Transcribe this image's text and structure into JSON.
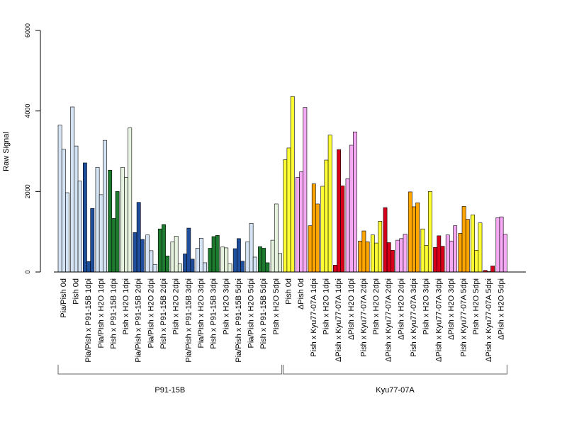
{
  "chart_data": {
    "type": "bar",
    "ylabel": "Raw Signal",
    "ylim": [
      0,
      6000
    ],
    "yticks": [
      "0",
      "2000",
      "4000",
      "6000"
    ],
    "grid": false,
    "legend": "none",
    "categories": [
      "Pia/Pish 0d",
      "Pish 0d",
      "Pia/Pish x P91-15B 1dpi",
      "Pia/Pish x H2O 1dpi",
      "Pish x P91-15B 1dpi",
      "Pish x H2O 1dpi",
      "Pia/Pish x P91-15B 2dpi",
      "Pia/Pish x H2O 2dpi",
      "Pish x P91-15B 2dpi",
      "Pish x H2O 2dpi",
      "Pia/Pish x P91-15B 3dpi",
      "Pia/Pish x H2O 3dpi",
      "Pish x P91-15B 3dpi",
      "Pish x H2O 3dpi",
      "Pia/Pish x P91-15B 5dpi",
      "Pia/Pish x H2O 5dpi",
      "Pish x P91-15B 5dpi",
      "Pish x H2O 5dpi",
      "Pish 0d",
      "ΔPish 0d",
      "Pish x Kyu77-07A 1dpi",
      "Pish x H2O 1dpi",
      "ΔPish x Kyu77-07A 1dpi",
      "ΔPish x H2O 1dpi",
      "Pish x Kyu77-07A 2dpi",
      "Pish x H2O 2dpi",
      "ΔPish x Kyu77-07A 2dpi",
      "ΔPish x H2O 2dpi",
      "Pish x Kyu77-07A 3dpi",
      "Pish x H2O 3dpi",
      "ΔPish x Kyu77-07A 3dpi",
      "ΔPish x H2O 3dpi",
      "Pish x Kyu77-07A 5dpi",
      "Pish x H2O 5dpi",
      "ΔPish x Kyu77-07A 5dpi",
      "ΔPish x H2O 5dpi"
    ],
    "colors": [
      "#d5e4f5",
      "#d5e4f5",
      "#1f4e9c",
      "#d5e4f5",
      "#1e7a2e",
      "#e4f2de",
      "#1f4e9c",
      "#d5e4f5",
      "#1e7a2e",
      "#e4f2de",
      "#1f4e9c",
      "#d5e4f5",
      "#1e7a2e",
      "#e4f2de",
      "#1f4e9c",
      "#d5e4f5",
      "#1e7a2e",
      "#e4f2de",
      "#ffff33",
      "#f5a9f5",
      "#ffa500",
      "#ffff33",
      "#d7001a",
      "#f5a9f5",
      "#ffa500",
      "#ffff33",
      "#d7001a",
      "#f5a9f5",
      "#ffa500",
      "#ffff33",
      "#d7001a",
      "#f5a9f5",
      "#ffa500",
      "#ffff33",
      "#d7001a",
      "#f5a9f5"
    ],
    "values": [
      [
        3650,
        3050,
        1970
      ],
      [
        4100,
        3130,
        2260
      ],
      [
        2710,
        260,
        1580
      ],
      [
        2600,
        1920,
        3270
      ],
      [
        2530,
        1330,
        2000
      ],
      [
        2600,
        2350,
        3580
      ],
      [
        980,
        1730,
        810
      ],
      [
        920,
        530,
        190
      ],
      [
        1070,
        1180,
        400
      ],
      [
        750,
        890,
        200
      ],
      [
        450,
        1090,
        320
      ],
      [
        590,
        840,
        230
      ],
      [
        590,
        880,
        910
      ],
      [
        620,
        600,
        200
      ],
      [
        580,
        830,
        270
      ],
      [
        750,
        1210,
        370
      ],
      [
        630,
        590,
        230
      ],
      [
        790,
        1690,
        460
      ],
      [
        2790,
        3080,
        4360
      ],
      [
        2350,
        2490,
        4090
      ],
      [
        1150,
        2190,
        1690
      ],
      [
        2130,
        2780,
        3400
      ],
      [
        170,
        3040,
        2140
      ],
      [
        2320,
        3150,
        3480
      ],
      [
        770,
        1020,
        750
      ],
      [
        920,
        720,
        1260
      ],
      [
        1600,
        730,
        540
      ],
      [
        790,
        830,
        940
      ],
      [
        1990,
        1620,
        1720
      ],
      [
        1070,
        660,
        2000
      ],
      [
        610,
        900,
        640
      ],
      [
        920,
        770,
        1150
      ],
      [
        960,
        1630,
        1310
      ],
      [
        1420,
        540,
        1220
      ],
      [
        40,
        10,
        150
      ],
      [
        1350,
        1370,
        940
      ]
    ],
    "groups": [
      {
        "name": "P91-15B",
        "from": 0,
        "to": 17
      },
      {
        "name": "Kyu77-07A",
        "from": 18,
        "to": 35
      }
    ]
  }
}
